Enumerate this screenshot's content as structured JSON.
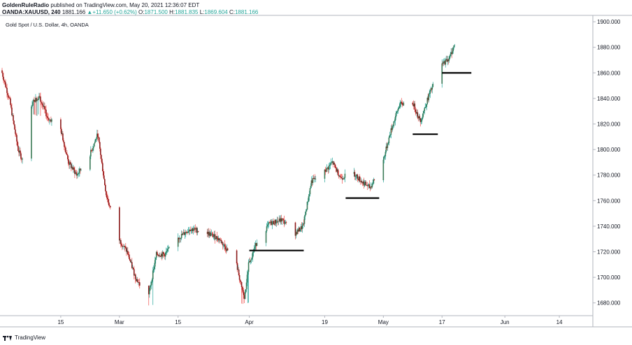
{
  "header": {
    "publisher": "GoldenRuleRadio",
    "published_text": "published on TradingView.com, May 20, 2021 12:36:07 EDT",
    "symbol": "OANDA:XAUUSD, 240",
    "last": "1881.166",
    "change": "+11.650 (+0.62%)",
    "o_label": "O:",
    "o_val": "1871.500",
    "h_label": "H:",
    "h_val": "1881.835",
    "l_label": "L:",
    "l_val": "1869.604",
    "c_label": "C:",
    "c_val": "1881.166"
  },
  "chart_title": "Gold Spot / U.S. Dollar, 4h, OANDA",
  "footer": {
    "brand": "TradingView"
  },
  "colors": {
    "up": "#26a69a",
    "down": "#ef5350",
    "body_up": "#3b7a57",
    "body_down": "#8b1a1a",
    "axis": "#b2b5be",
    "text": "#131722",
    "support": "#000000"
  },
  "chart_data": {
    "type": "candlestick",
    "title": "Gold Spot / U.S. Dollar, 4h, OANDA",
    "ylim": [
      1670,
      1905
    ],
    "y_ticks": [
      "1900.000",
      "1880.000",
      "1860.000",
      "1840.000",
      "1820.000",
      "1800.000",
      "1780.000",
      "1760.000",
      "1740.000",
      "1720.000",
      "1700.000",
      "1680.000"
    ],
    "x_ticks": [
      "15",
      "Mar",
      "15",
      "Apr",
      "19",
      "May",
      "17",
      "Jun",
      "14"
    ],
    "x_tick_dates": [
      "2021-02-15",
      "2021-03-01",
      "2021-03-15",
      "2021-04-01",
      "2021-04-19",
      "2021-05-03",
      "2021-05-17",
      "2021-06-01",
      "2021-06-14"
    ],
    "x_range": [
      "2021-02-01",
      "2021-06-22"
    ],
    "price_path": [
      [
        "2021-02-01",
        1862
      ],
      [
        "2021-02-03",
        1838
      ],
      [
        "2021-02-05",
        1800
      ],
      [
        "2021-02-06",
        1792
      ],
      [
        "2021-02-08",
        1835
      ],
      [
        "2021-02-10",
        1842
      ],
      [
        "2021-02-12",
        1825
      ],
      [
        "2021-02-15",
        1818
      ],
      [
        "2021-02-17",
        1790
      ],
      [
        "2021-02-19",
        1780
      ],
      [
        "2021-02-22",
        1795
      ],
      [
        "2021-02-24",
        1812
      ],
      [
        "2021-02-26",
        1765
      ],
      [
        "2021-03-01",
        1730
      ],
      [
        "2021-03-03",
        1720
      ],
      [
        "2021-03-05",
        1700
      ],
      [
        "2021-03-08",
        1683
      ],
      [
        "2021-03-10",
        1718
      ],
      [
        "2021-03-12",
        1718
      ],
      [
        "2021-03-15",
        1730
      ],
      [
        "2021-03-18",
        1738
      ],
      [
        "2021-03-22",
        1735
      ],
      [
        "2021-03-25",
        1730
      ],
      [
        "2021-03-29",
        1712
      ],
      [
        "2021-03-31",
        1682
      ],
      [
        "2021-04-01",
        1710
      ],
      [
        "2021-04-03",
        1728
      ],
      [
        "2021-04-06",
        1742
      ],
      [
        "2021-04-09",
        1745
      ],
      [
        "2021-04-12",
        1734
      ],
      [
        "2021-04-14",
        1740
      ],
      [
        "2021-04-16",
        1775
      ],
      [
        "2021-04-19",
        1782
      ],
      [
        "2021-04-21",
        1790
      ],
      [
        "2021-04-23",
        1778
      ],
      [
        "2021-04-26",
        1782
      ],
      [
        "2021-04-28",
        1775
      ],
      [
        "2021-04-30",
        1770
      ],
      [
        "2021-05-03",
        1790
      ],
      [
        "2021-05-05",
        1815
      ],
      [
        "2021-05-07",
        1835
      ],
      [
        "2021-05-10",
        1838
      ],
      [
        "2021-05-12",
        1822
      ],
      [
        "2021-05-14",
        1842
      ],
      [
        "2021-05-17",
        1866
      ],
      [
        "2021-05-19",
        1872
      ],
      [
        "2021-05-20",
        1881
      ]
    ],
    "lows": [
      {
        "from": "2021-02-08",
        "to": "2021-02-12",
        "value": 1826
      },
      {
        "from": "2021-03-07",
        "to": "2021-03-09",
        "value": 1677
      },
      {
        "from": "2021-03-30",
        "to": "2021-04-01",
        "value": 1679
      }
    ],
    "support_lines": [
      {
        "from": "2021-04-01",
        "to": "2021-04-14",
        "value": 1721
      },
      {
        "from": "2021-04-24",
        "to": "2021-05-02",
        "value": 1762
      },
      {
        "from": "2021-05-10",
        "to": "2021-05-16",
        "value": 1812
      },
      {
        "from": "2021-05-17",
        "to": "2021-05-24",
        "value": 1860
      }
    ],
    "grid": false,
    "legend": "none"
  }
}
